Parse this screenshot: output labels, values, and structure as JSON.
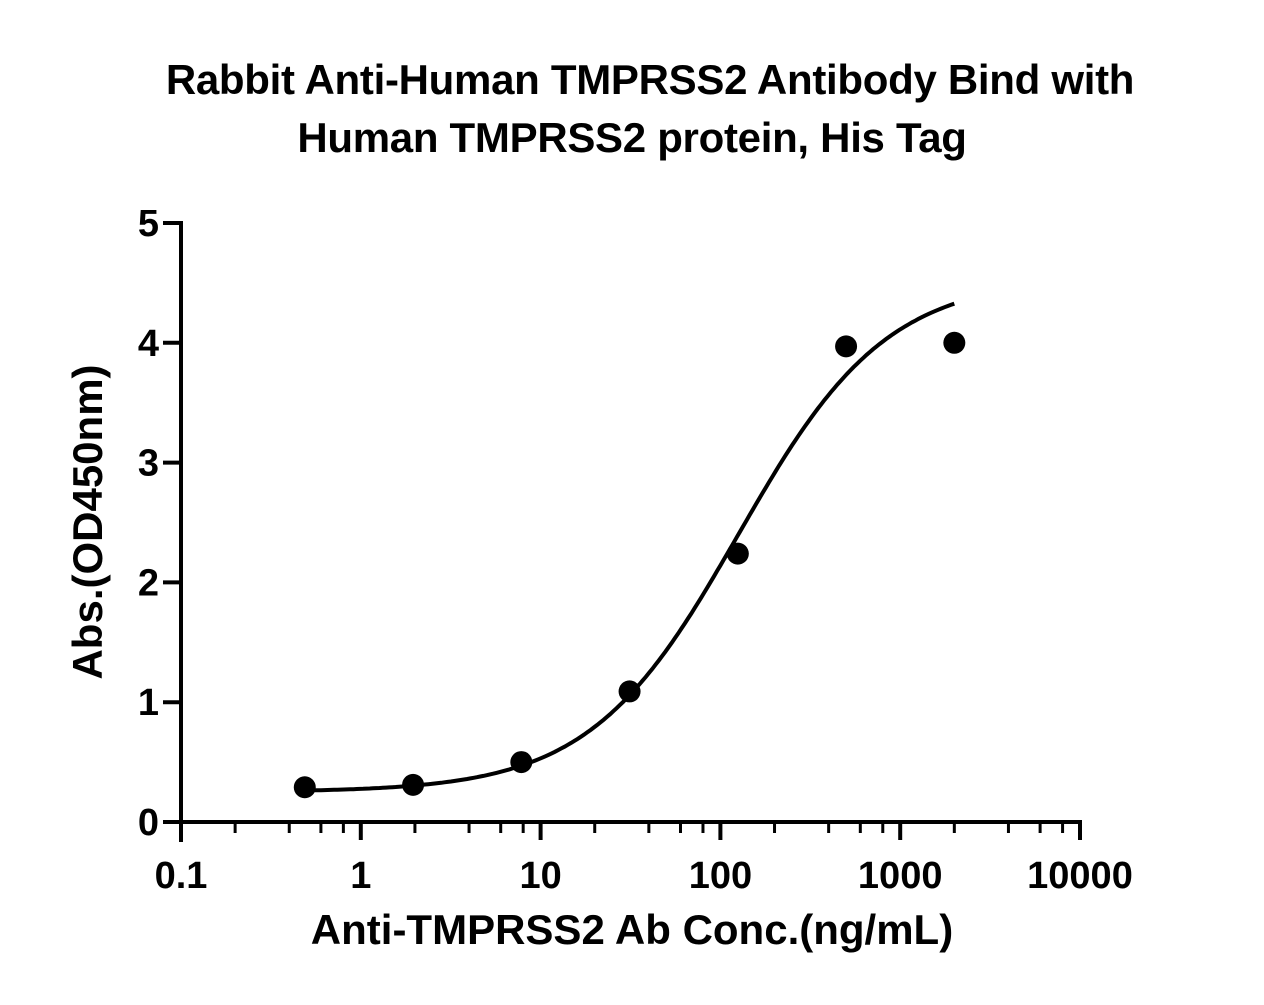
{
  "chart_data": {
    "type": "scatter",
    "title": "Rabbit Anti-Human TMPRSS2 Antibody Bind with Human TMPRSS2 protein, His Tag",
    "title_lines": [
      "Rabbit Anti-Human TMPRSS2 Antibody Bind with",
      "Human TMPRSS2 protein, His Tag"
    ],
    "xlabel": "Anti-TMPRSS2 Ab Conc.(ng/mL)",
    "ylabel": "Abs.(OD450nm)",
    "xscale": "log",
    "xlim": [
      0.1,
      10000
    ],
    "ylim": [
      0,
      5
    ],
    "xticks": [
      0.1,
      1,
      10,
      100,
      1000,
      10000
    ],
    "xtick_labels": [
      "0.1",
      "1",
      "10",
      "100",
      "1000",
      "10000"
    ],
    "yticks": [
      0,
      1,
      2,
      3,
      4,
      5
    ],
    "ytick_labels": [
      "0",
      "1",
      "2",
      "3",
      "4",
      "5"
    ],
    "grid": false,
    "legend": null,
    "series": [
      {
        "name": "Anti-TMPRSS2 Ab",
        "marker": "filled-circle",
        "color": "#000000",
        "x": [
          0.488,
          1.953,
          7.8125,
          31.25,
          125,
          500,
          2000
        ],
        "y": [
          0.29,
          0.31,
          0.5,
          1.09,
          2.24,
          3.97,
          4.0
        ]
      }
    ],
    "fit_curve": {
      "model": "4PL",
      "bottom": 0.25,
      "top": 4.55,
      "log_ec50": 2.1,
      "hill_slope": 1.05,
      "x_range": [
        0.488,
        2000
      ]
    }
  }
}
